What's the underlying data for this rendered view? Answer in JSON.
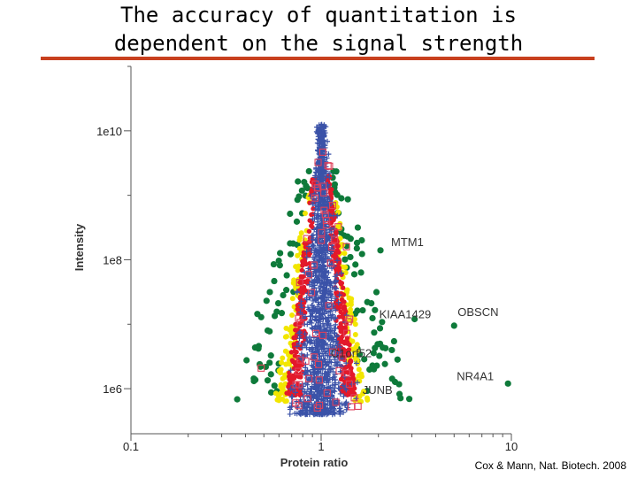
{
  "slide": {
    "title_line1": "The accuracy of quantitation is",
    "title_line2": "dependent on the signal strength",
    "accent_color": "#c8401e",
    "credit": "Cox & Mann, Nat. Biotech. 2008"
  },
  "chart_data": {
    "type": "scatter",
    "title": "",
    "xlabel": "Protein ratio",
    "ylabel": "Intensity",
    "xscale": "log",
    "yscale": "log",
    "xlim": [
      0.1,
      10
    ],
    "ylim": [
      200000,
      100000000000
    ],
    "xticks": [
      {
        "value": 0.1,
        "label": "0.1"
      },
      {
        "value": 1,
        "label": "1"
      },
      {
        "value": 10,
        "label": "10"
      }
    ],
    "yticks": [
      {
        "value": 1000000,
        "label": "1e6"
      },
      {
        "value": 100000000,
        "label": "1e8"
      },
      {
        "value": 10000000000,
        "label": "1e10"
      }
    ],
    "colors": {
      "blue": "#3b52a8",
      "red": "#e3192a",
      "yellow": "#f2e600",
      "green": "#0e7a3a",
      "square": "#e0405a"
    },
    "annotations": [
      {
        "label": "MTM1",
        "x": 2.05,
        "y": 140000000
      },
      {
        "label": "KIAA1429",
        "x": 3.1,
        "y": 12000000
      },
      {
        "label": "OBSCN",
        "x": 5.0,
        "y": 9500000
      },
      {
        "label": "C1orf52",
        "x": 1.55,
        "y": 2700000
      },
      {
        "label": "NR4A1",
        "x": 9.6,
        "y": 1200000
      },
      {
        "label": "JUNB",
        "x": 1.42,
        "y": 1000000
      }
    ]
  }
}
